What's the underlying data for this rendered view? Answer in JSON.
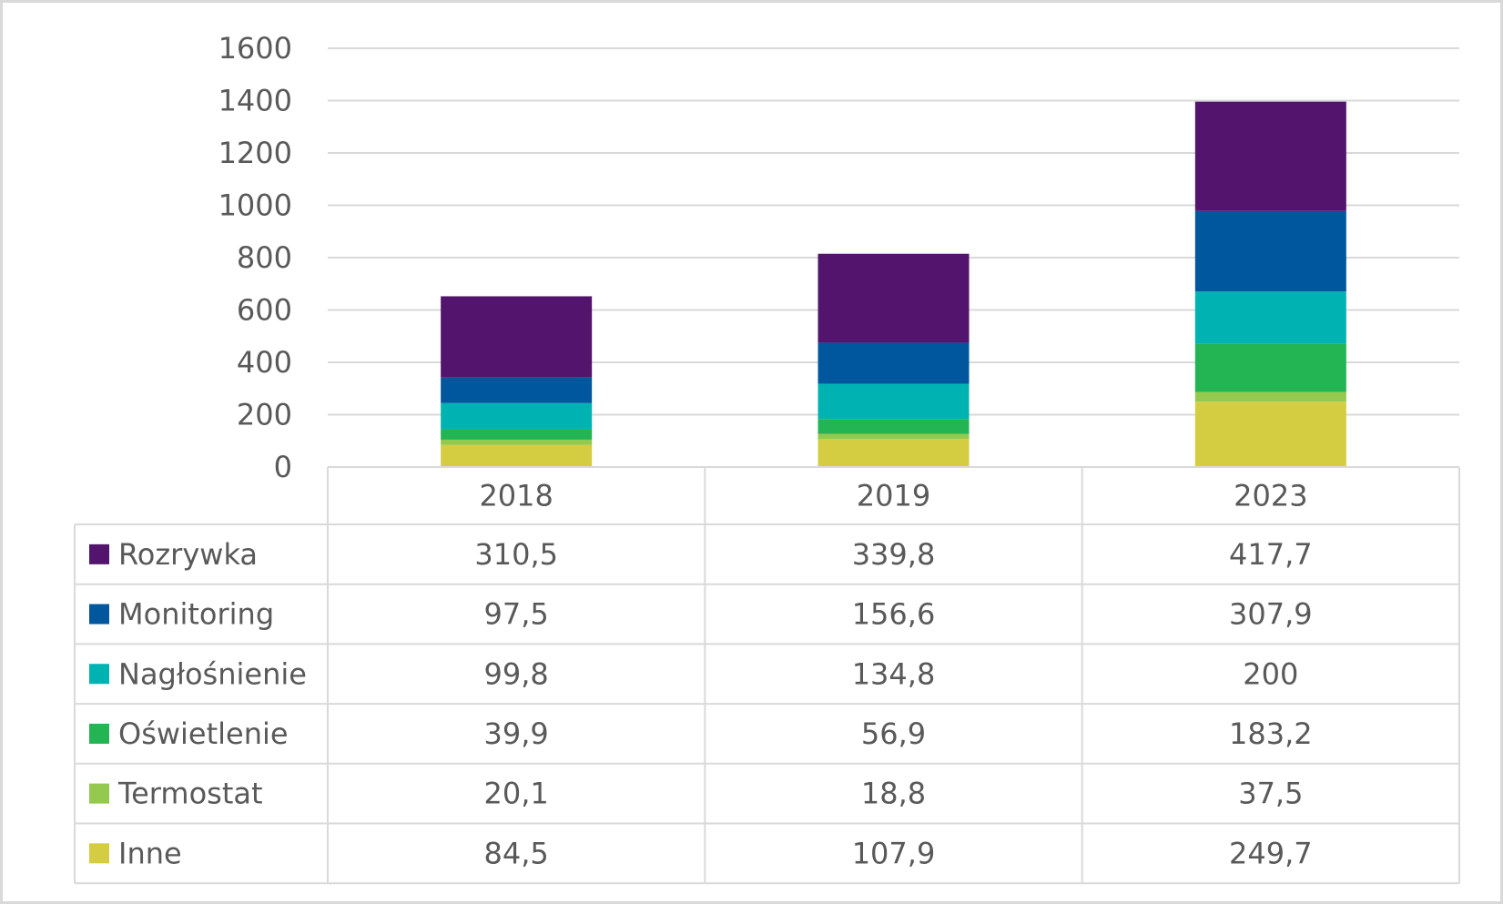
{
  "chart_data": {
    "type": "bar",
    "stacked": true,
    "categories": [
      "2018",
      "2019",
      "2023"
    ],
    "ylim": [
      0,
      1600
    ],
    "yticks": [
      "0",
      "200",
      "400",
      "600",
      "800",
      "1000",
      "1200",
      "1400",
      "1600"
    ],
    "grid": true,
    "legend": "data-table-left",
    "series": [
      {
        "name": "Inne",
        "color": "#d4cd42",
        "values": [
          84.5,
          107.9,
          249.7
        ],
        "labels": [
          "84,5",
          "107,9",
          "249,7"
        ]
      },
      {
        "name": "Termostat",
        "color": "#92c94e",
        "values": [
          20.1,
          18.8,
          37.5
        ],
        "labels": [
          "20,1",
          "18,8",
          "37,5"
        ]
      },
      {
        "name": "Oświetlenie",
        "color": "#23b454",
        "values": [
          39.9,
          56.9,
          183.2
        ],
        "labels": [
          "39,9",
          "56,9",
          "183,2"
        ]
      },
      {
        "name": "Nagłośnienie",
        "color": "#00b3b3",
        "values": [
          99.8,
          134.8,
          200
        ],
        "labels": [
          "99,8",
          "134,8",
          "200"
        ]
      },
      {
        "name": "Monitoring",
        "color": "#00579e",
        "values": [
          97.5,
          156.6,
          307.9
        ],
        "labels": [
          "97,5",
          "156,6",
          "307,9"
        ]
      },
      {
        "name": "Rozrywka",
        "color": "#52146c",
        "values": [
          310.5,
          339.8,
          417.7
        ],
        "labels": [
          "310,5",
          "339,8",
          "417,7"
        ]
      }
    ],
    "table_row_order": [
      "Rozrywka",
      "Monitoring",
      "Nagłośnienie",
      "Oświetlenie",
      "Termostat",
      "Inne"
    ]
  }
}
